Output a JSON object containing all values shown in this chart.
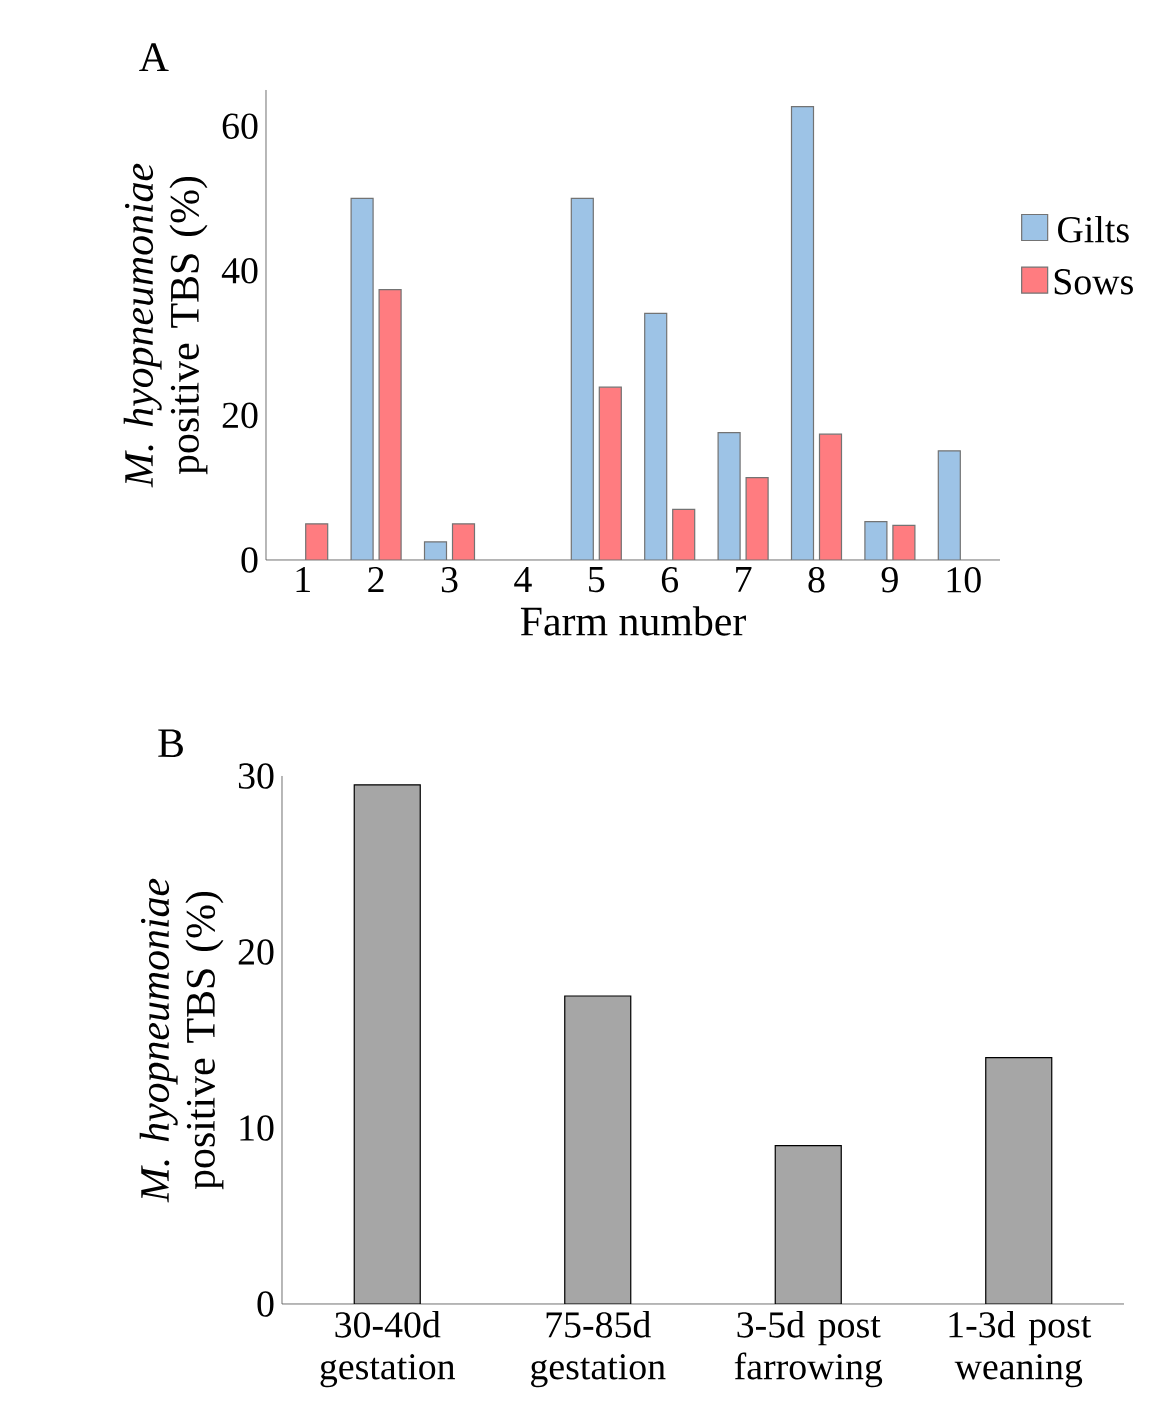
{
  "chart_data": [
    {
      "type": "bar",
      "title": "A",
      "xlabel": "Farm number",
      "ylabel": "*M. hyopneumoniae* positive TBS (%)",
      "categories": [
        "1",
        "2",
        "3",
        "4",
        "5",
        "6",
        "7",
        "8",
        "9",
        "10"
      ],
      "series": [
        {
          "name": "Gilts",
          "color": "#9dc3e6",
          "values": [
            null,
            50.0,
            2.5,
            null,
            50.0,
            34.1,
            17.6,
            62.7,
            5.3,
            15.1
          ]
        },
        {
          "name": "Sows",
          "color": "#ff7c80",
          "values": [
            5.0,
            37.4,
            5.0,
            null,
            23.9,
            7.0,
            11.4,
            17.4,
            4.8,
            null
          ]
        }
      ],
      "ylim": [
        0,
        65
      ],
      "yticks": [
        0,
        20,
        40,
        60
      ],
      "legend": "right"
    },
    {
      "type": "bar",
      "title": "B",
      "ylabel": "*M. hyopneumoniae* positive TBS (%)",
      "categories": [
        "30-40d gestation",
        "75-85d gestation",
        "3-5d post farrowing",
        "1-3d post weaning"
      ],
      "values": [
        29.5,
        17.5,
        9.0,
        14.0
      ],
      "color": "#a6a6a6",
      "ylim": [
        0,
        30
      ],
      "yticks": [
        0,
        10,
        20,
        30
      ]
    }
  ]
}
